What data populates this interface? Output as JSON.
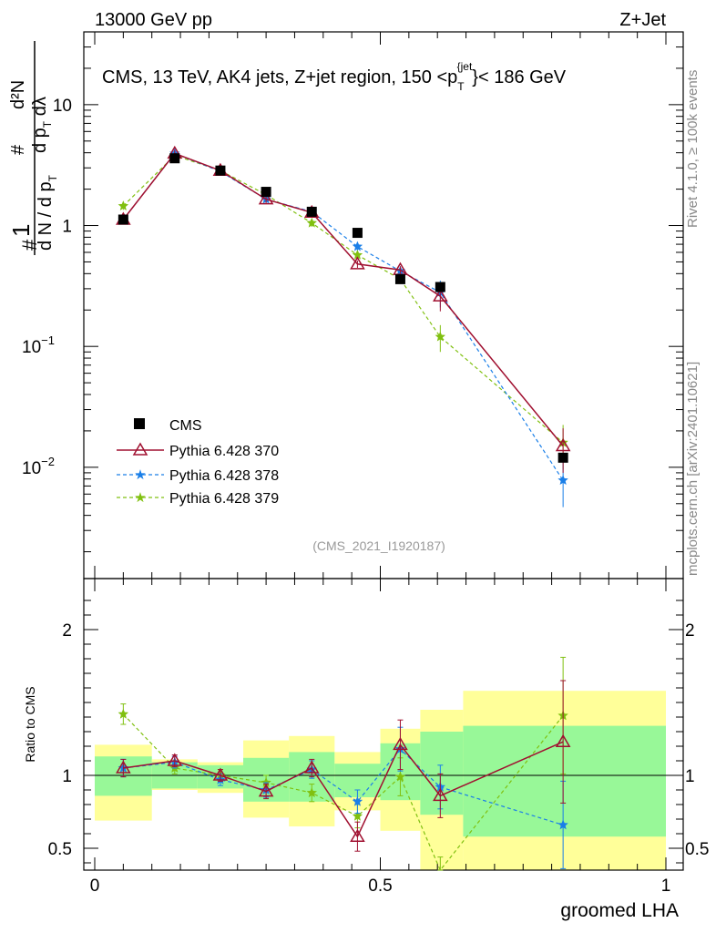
{
  "header": {
    "left": "13000 GeV pp",
    "right": "Z+Jet"
  },
  "side_text": {
    "top": "Rivet 4.1.0, ≥ 100k events",
    "bottom": "mcplots.cern.ch [arXiv:2401.10621]"
  },
  "colors": {
    "cms": "#000000",
    "p370": "#a01030",
    "p378": "#1a7fe8",
    "p379": "#80c010",
    "band_green": "#98f898",
    "band_yellow": "#ffff99"
  },
  "chart_data": [
    {
      "type": "scatter",
      "panel": "main",
      "title": "CMS, 13 TeV, AK4 jets, Z+jet region, 150 <p_T^{jet}< 186 GeV",
      "ylabel": "1/(dN/dp_T) d²N/(dp_T dλ)",
      "yscale": "log",
      "ylim": [
        0.0012,
        40
      ],
      "xlim": [
        -0.03,
        1.0
      ],
      "yticks": [
        {
          "v": 10,
          "label": "10",
          "exp": ""
        },
        {
          "v": 1,
          "label": "1",
          "exp": ""
        },
        {
          "v": 0.1,
          "label": "10",
          "exp": "−1"
        },
        {
          "v": 0.01,
          "label": "10",
          "exp": "−2"
        }
      ],
      "watermark": "(CMS_2021_I1920187)",
      "x": [
        0.05,
        0.14,
        0.22,
        0.3,
        0.38,
        0.46,
        0.535,
        0.605,
        0.82
      ],
      "series": [
        {
          "name": "CMS",
          "key": "cms",
          "marker": "square",
          "values": [
            1.12,
            3.6,
            2.85,
            1.9,
            1.3,
            0.87,
            0.36,
            0.31,
            0.012
          ]
        },
        {
          "name": "Pythia 6.428 370",
          "key": "p370",
          "marker": "triangle",
          "dashed": false,
          "values": [
            1.12,
            3.95,
            2.85,
            1.65,
            1.28,
            0.48,
            0.43,
            0.26,
            0.015
          ]
        },
        {
          "name": "Pythia 6.428 378",
          "key": "p378",
          "marker": "star",
          "dashed": true,
          "values": [
            1.12,
            3.95,
            2.8,
            1.65,
            1.3,
            0.67,
            0.42,
            0.28,
            0.0078
          ]
        },
        {
          "name": "Pythia 6.428 379",
          "key": "p379",
          "marker": "star",
          "dashed": true,
          "values": [
            1.45,
            3.8,
            2.85,
            1.8,
            1.05,
            0.57,
            0.36,
            0.12,
            0.016
          ]
        }
      ]
    },
    {
      "type": "line",
      "panel": "ratio",
      "ylabel": "Ratio to CMS",
      "xlabel": "groomed LHA",
      "ylim": [
        0.35,
        2.35
      ],
      "xticks": [
        {
          "v": 0,
          "label": "0"
        },
        {
          "v": 0.5,
          "label": "0.5"
        },
        {
          "v": 1,
          "label": "1"
        }
      ],
      "yticks": [
        {
          "v": 0.5,
          "label": "0.5"
        },
        {
          "v": 1,
          "label": "1"
        },
        {
          "v": 2,
          "label": "2"
        }
      ],
      "bands": [
        {
          "x0": 0.0,
          "x1": 0.1,
          "g": [
            0.86,
            1.13
          ],
          "y": [
            0.69,
            1.21
          ]
        },
        {
          "x0": 0.1,
          "x1": 0.18,
          "g": [
            0.91,
            1.09
          ],
          "y": [
            0.9,
            1.11
          ]
        },
        {
          "x0": 0.18,
          "x1": 0.26,
          "g": [
            0.91,
            1.07
          ],
          "y": [
            0.88,
            1.09
          ]
        },
        {
          "x0": 0.26,
          "x1": 0.34,
          "g": [
            0.82,
            1.12
          ],
          "y": [
            0.71,
            1.24
          ]
        },
        {
          "x0": 0.34,
          "x1": 0.42,
          "g": [
            0.82,
            1.16
          ],
          "y": [
            0.65,
            1.27
          ]
        },
        {
          "x0": 0.42,
          "x1": 0.5,
          "g": [
            0.85,
            1.08
          ],
          "y": [
            0.76,
            1.16
          ]
        },
        {
          "x0": 0.5,
          "x1": 0.57,
          "g": [
            0.83,
            1.22
          ],
          "y": [
            0.62,
            1.32
          ]
        },
        {
          "x0": 0.57,
          "x1": 0.645,
          "g": [
            0.73,
            1.3
          ],
          "y": [
            0.35,
            1.45
          ]
        },
        {
          "x0": 0.645,
          "x1": 1.0,
          "g": [
            0.58,
            1.34
          ],
          "y": [
            0.35,
            1.58
          ]
        }
      ],
      "x": [
        0.05,
        0.14,
        0.22,
        0.3,
        0.38,
        0.46,
        0.535,
        0.605,
        0.82
      ],
      "series": [
        {
          "name": "Pythia 6.428 370",
          "key": "p370",
          "marker": "triangle",
          "dashed": false,
          "values": [
            1.05,
            1.1,
            1.0,
            0.89,
            1.05,
            0.58,
            1.21,
            0.86,
            1.23
          ],
          "err": [
            0.06,
            0.04,
            0.04,
            0.05,
            0.06,
            0.1,
            0.17,
            0.15,
            0.42
          ]
        },
        {
          "name": "Pythia 6.428 378",
          "key": "p378",
          "marker": "star",
          "dashed": true,
          "values": [
            1.05,
            1.09,
            0.97,
            0.9,
            1.04,
            0.82,
            1.18,
            0.92,
            0.66
          ],
          "err": [
            0.06,
            0.04,
            0.04,
            0.05,
            0.06,
            0.08,
            0.15,
            0.15,
            0.3
          ]
        },
        {
          "name": "Pythia 6.428 379",
          "key": "p379",
          "marker": "star",
          "dashed": true,
          "values": [
            1.42,
            1.05,
            1.0,
            0.95,
            0.88,
            0.72,
            0.99,
            0.34,
            1.41
          ],
          "err": [
            0.07,
            0.04,
            0.04,
            0.05,
            0.06,
            0.08,
            0.13,
            0.1,
            0.4
          ]
        }
      ]
    }
  ]
}
